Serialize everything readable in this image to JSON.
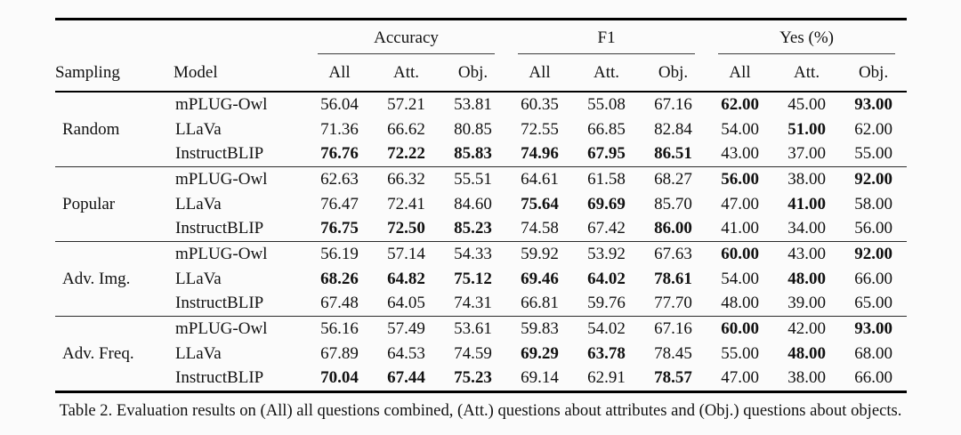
{
  "table": {
    "header": {
      "sampling": "Sampling",
      "model": "Model"
    },
    "col_groups": [
      {
        "label": "Accuracy"
      },
      {
        "label": "F1"
      },
      {
        "label": "Yes (%)"
      }
    ],
    "sub_headers": [
      "All",
      "Att.",
      "Obj."
    ],
    "groups": [
      {
        "sampling": "Random",
        "rows": [
          {
            "model": "mPLUG-Owl",
            "values": [
              "56.04",
              "57.21",
              "53.81",
              "60.35",
              "55.08",
              "67.16",
              "62.00",
              "45.00",
              "93.00"
            ],
            "bold": [
              false,
              false,
              false,
              false,
              false,
              false,
              true,
              false,
              true
            ]
          },
          {
            "model": "LLaVa",
            "values": [
              "71.36",
              "66.62",
              "80.85",
              "72.55",
              "66.85",
              "82.84",
              "54.00",
              "51.00",
              "62.00"
            ],
            "bold": [
              false,
              false,
              false,
              false,
              false,
              false,
              false,
              true,
              false
            ]
          },
          {
            "model": "InstructBLIP",
            "values": [
              "76.76",
              "72.22",
              "85.83",
              "74.96",
              "67.95",
              "86.51",
              "43.00",
              "37.00",
              "55.00"
            ],
            "bold": [
              true,
              true,
              true,
              true,
              true,
              true,
              false,
              false,
              false
            ]
          }
        ]
      },
      {
        "sampling": "Popular",
        "rows": [
          {
            "model": "mPLUG-Owl",
            "values": [
              "62.63",
              "66.32",
              "55.51",
              "64.61",
              "61.58",
              "68.27",
              "56.00",
              "38.00",
              "92.00"
            ],
            "bold": [
              false,
              false,
              false,
              false,
              false,
              false,
              true,
              false,
              true
            ]
          },
          {
            "model": "LLaVa",
            "values": [
              "76.47",
              "72.41",
              "84.60",
              "75.64",
              "69.69",
              "85.70",
              "47.00",
              "41.00",
              "58.00"
            ],
            "bold": [
              false,
              false,
              false,
              true,
              true,
              false,
              false,
              true,
              false
            ]
          },
          {
            "model": "InstructBLIP",
            "values": [
              "76.75",
              "72.50",
              "85.23",
              "74.58",
              "67.42",
              "86.00",
              "41.00",
              "34.00",
              "56.00"
            ],
            "bold": [
              true,
              true,
              true,
              false,
              false,
              true,
              false,
              false,
              false
            ]
          }
        ]
      },
      {
        "sampling": "Adv. Img.",
        "rows": [
          {
            "model": "mPLUG-Owl",
            "values": [
              "56.19",
              "57.14",
              "54.33",
              "59.92",
              "53.92",
              "67.63",
              "60.00",
              "43.00",
              "92.00"
            ],
            "bold": [
              false,
              false,
              false,
              false,
              false,
              false,
              true,
              false,
              true
            ]
          },
          {
            "model": "LLaVa",
            "values": [
              "68.26",
              "64.82",
              "75.12",
              "69.46",
              "64.02",
              "78.61",
              "54.00",
              "48.00",
              "66.00"
            ],
            "bold": [
              true,
              true,
              true,
              true,
              true,
              true,
              false,
              true,
              false
            ]
          },
          {
            "model": "InstructBLIP",
            "values": [
              "67.48",
              "64.05",
              "74.31",
              "66.81",
              "59.76",
              "77.70",
              "48.00",
              "39.00",
              "65.00"
            ],
            "bold": [
              false,
              false,
              false,
              false,
              false,
              false,
              false,
              false,
              false
            ]
          }
        ]
      },
      {
        "sampling": "Adv. Freq.",
        "rows": [
          {
            "model": "mPLUG-Owl",
            "values": [
              "56.16",
              "57.49",
              "53.61",
              "59.83",
              "54.02",
              "67.16",
              "60.00",
              "42.00",
              "93.00"
            ],
            "bold": [
              false,
              false,
              false,
              false,
              false,
              false,
              true,
              false,
              true
            ]
          },
          {
            "model": "LLaVa",
            "values": [
              "67.89",
              "64.53",
              "74.59",
              "69.29",
              "63.78",
              "78.45",
              "55.00",
              "48.00",
              "68.00"
            ],
            "bold": [
              false,
              false,
              false,
              true,
              true,
              false,
              false,
              true,
              false
            ]
          },
          {
            "model": "InstructBLIP",
            "values": [
              "70.04",
              "67.44",
              "75.23",
              "69.14",
              "62.91",
              "78.57",
              "47.00",
              "38.00",
              "66.00"
            ],
            "bold": [
              true,
              true,
              true,
              false,
              false,
              true,
              false,
              false,
              false
            ]
          }
        ]
      }
    ]
  },
  "caption": "Table 2. Evaluation results on (All) all questions combined, (Att.) questions about attributes and (Obj.) questions about objects."
}
